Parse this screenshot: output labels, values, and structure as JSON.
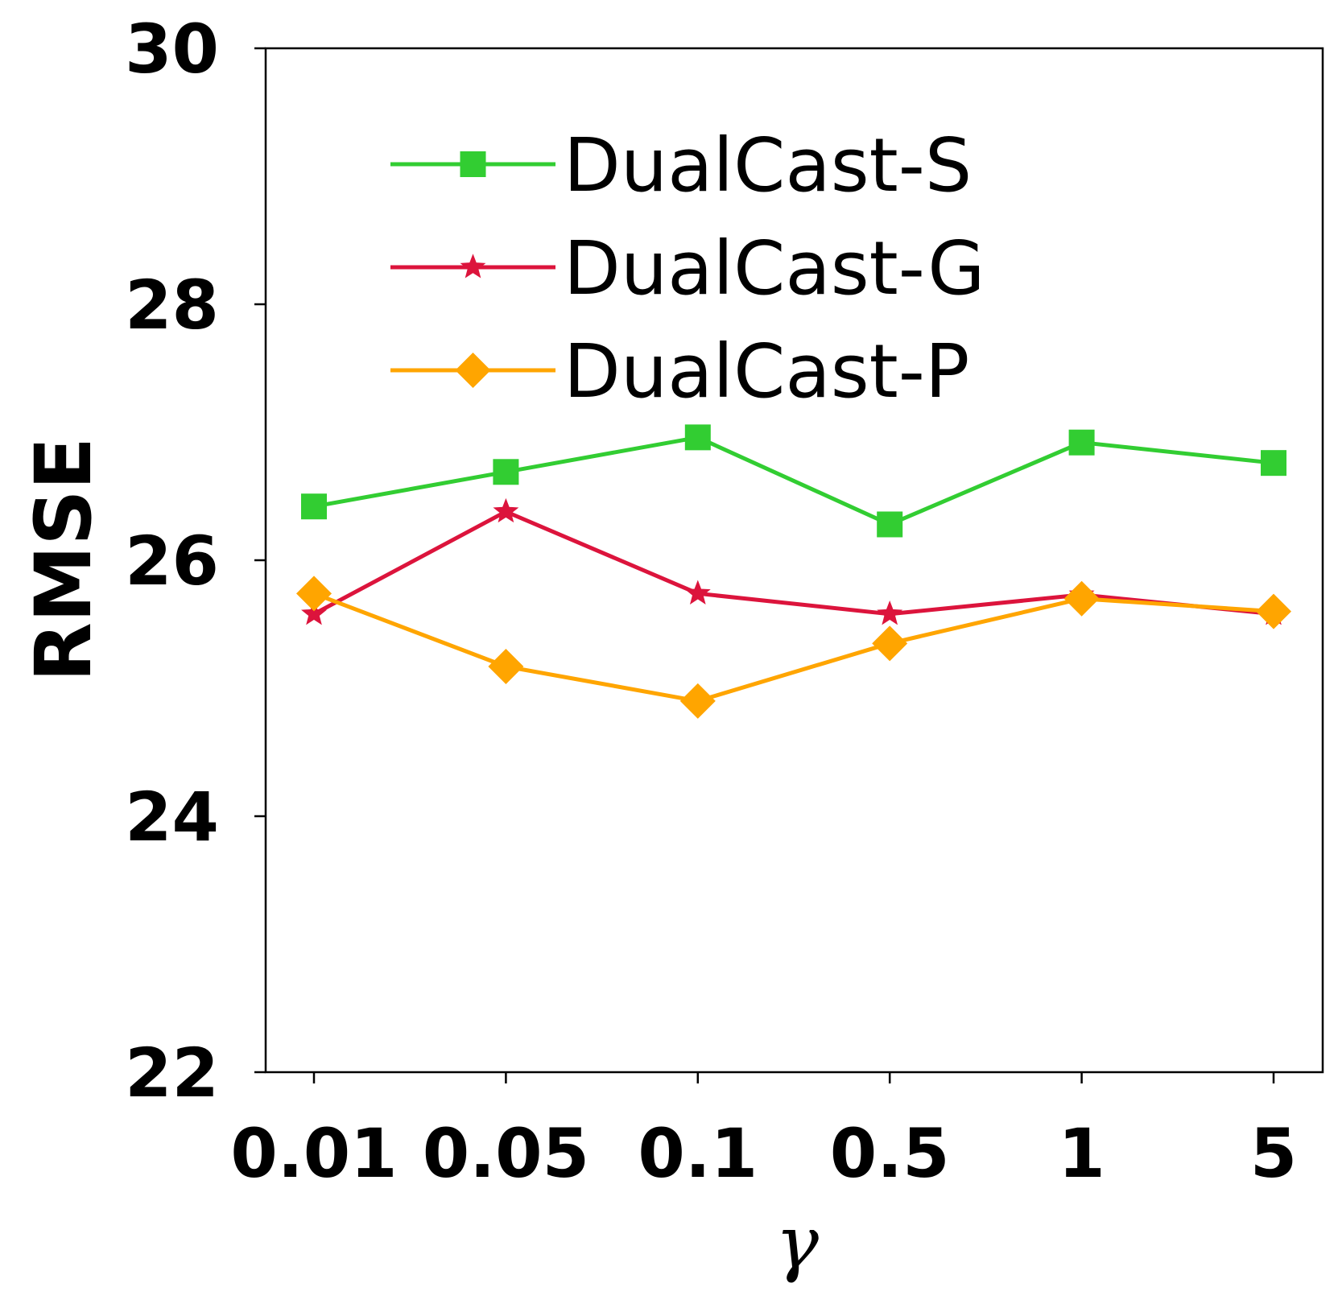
{
  "chart_data": {
    "type": "line",
    "categories": [
      "0.01",
      "0.05",
      "0.1",
      "0.5",
      "1",
      "5"
    ],
    "xlabel": "γ",
    "ylabel": "RMSE",
    "ylim": [
      22,
      30
    ],
    "yticks": [
      "22",
      "24",
      "26",
      "28",
      "30"
    ],
    "grid": false,
    "legend_position": "top-center",
    "series": [
      {
        "name": "DualCast-S",
        "color": "#32cd32",
        "marker": "square",
        "values": [
          26.42,
          26.69,
          26.96,
          26.28,
          26.92,
          26.76
        ]
      },
      {
        "name": "DualCast-G",
        "color": "#dc143c",
        "marker": "star",
        "values": [
          25.58,
          26.38,
          25.74,
          25.58,
          25.73,
          25.58
        ]
      },
      {
        "name": "DualCast-P",
        "color": "#ffa500",
        "marker": "diamond",
        "values": [
          25.74,
          25.17,
          24.9,
          25.35,
          25.7,
          25.6
        ]
      }
    ]
  }
}
